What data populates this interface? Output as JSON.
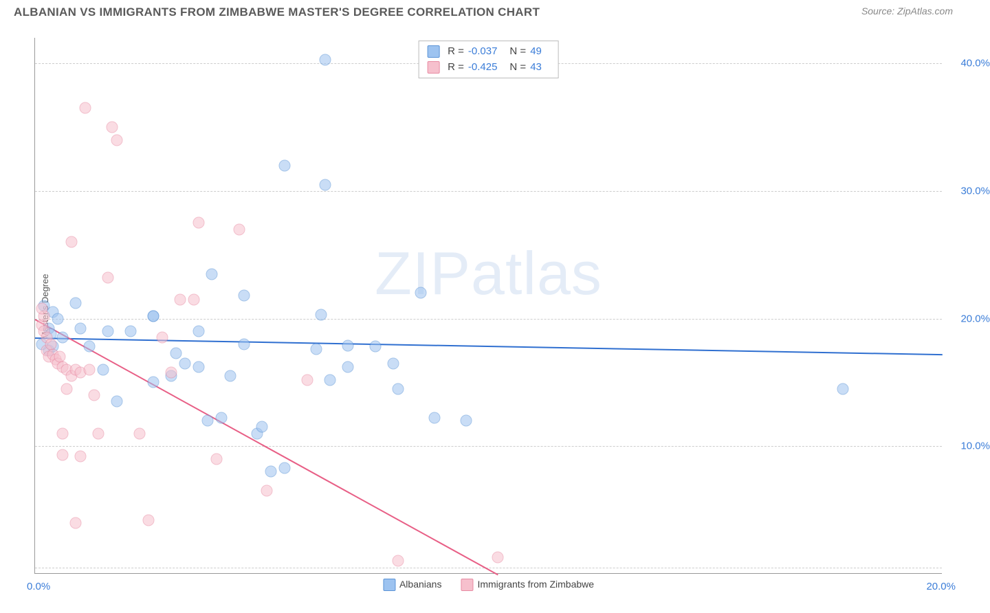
{
  "header": {
    "title": "ALBANIAN VS IMMIGRANTS FROM ZIMBABWE MASTER'S DEGREE CORRELATION CHART",
    "source_prefix": "Source: ",
    "source_name": "ZipAtlas.com"
  },
  "watermark": "ZIPatlas",
  "chart": {
    "type": "scatter",
    "ylabel": "Master's Degree",
    "xlim": [
      0,
      20
    ],
    "ylim": [
      0,
      42
    ],
    "xticks": [
      {
        "v": 0,
        "label": "0.0%"
      },
      {
        "v": 20,
        "label": "20.0%"
      }
    ],
    "yticks": [
      {
        "v": 10,
        "label": "10.0%"
      },
      {
        "v": 20,
        "label": "20.0%"
      },
      {
        "v": 30,
        "label": "30.0%"
      },
      {
        "v": 40,
        "label": "40.0%"
      }
    ],
    "ygrid": [
      0.5,
      10,
      20,
      30,
      40
    ],
    "background_color": "#ffffff",
    "grid_color": "#cccccc",
    "axis_color": "#999999",
    "tick_color": "#3b7dd8",
    "point_radius": 8.5,
    "point_opacity": 0.55,
    "series": [
      {
        "id": "albanians",
        "label": "Albanians",
        "fill_color": "#9dc3f0",
        "stroke_color": "#5a93d6",
        "trend_color": "#2f6fd0",
        "trend_width": 2.2,
        "trend": {
          "x1": 0,
          "y1": 18.5,
          "x2": 20,
          "y2": 17.2
        },
        "R_label": "R =",
        "R_value": "-0.037",
        "N_label": "N =",
        "N_value": "49",
        "points": [
          [
            0.2,
            21
          ],
          [
            0.3,
            19.2
          ],
          [
            0.3,
            17.5
          ],
          [
            0.35,
            18.8
          ],
          [
            0.4,
            20.5
          ],
          [
            0.4,
            17.8
          ],
          [
            6.4,
            40.3
          ],
          [
            5.5,
            32.0
          ],
          [
            6.4,
            30.5
          ],
          [
            3.9,
            23.5
          ],
          [
            4.6,
            21.8
          ],
          [
            1.6,
            19.0
          ],
          [
            2.1,
            19.0
          ],
          [
            2.6,
            20.2
          ],
          [
            2.6,
            20.2
          ],
          [
            1.5,
            16.0
          ],
          [
            1.8,
            13.5
          ],
          [
            1.0,
            19.2
          ],
          [
            1.2,
            17.8
          ],
          [
            0.9,
            21.2
          ],
          [
            3.1,
            17.3
          ],
          [
            3.6,
            16.2
          ],
          [
            3.3,
            16.5
          ],
          [
            3.8,
            12.0
          ],
          [
            4.1,
            12.2
          ],
          [
            3.0,
            15.5
          ],
          [
            2.6,
            15.0
          ],
          [
            3.6,
            19.0
          ],
          [
            4.6,
            18.0
          ],
          [
            5.2,
            8.0
          ],
          [
            5.5,
            8.3
          ],
          [
            4.3,
            15.5
          ],
          [
            6.2,
            17.6
          ],
          [
            6.9,
            17.9
          ],
          [
            6.5,
            15.2
          ],
          [
            6.9,
            16.2
          ],
          [
            6.3,
            20.3
          ],
          [
            7.5,
            17.8
          ],
          [
            7.9,
            16.5
          ],
          [
            8.5,
            22.0
          ],
          [
            8.8,
            12.2
          ],
          [
            8.0,
            14.5
          ],
          [
            9.5,
            12.0
          ],
          [
            4.9,
            11.0
          ],
          [
            5.0,
            11.5
          ],
          [
            17.8,
            14.5
          ],
          [
            0.5,
            20.0
          ],
          [
            0.6,
            18.5
          ],
          [
            0.15,
            18.0
          ]
        ]
      },
      {
        "id": "zimbabwe",
        "label": "Immigrants from Zimbabwe",
        "fill_color": "#f6c0cd",
        "stroke_color": "#e88aa2",
        "trend_color": "#e85f86",
        "trend_width": 2.2,
        "trend": {
          "x1": 0,
          "y1": 20.0,
          "x2": 10.2,
          "y2": 0
        },
        "R_label": "R =",
        "R_value": "-0.425",
        "N_label": "N =",
        "N_value": "43",
        "points": [
          [
            1.1,
            36.5
          ],
          [
            1.7,
            35.0
          ],
          [
            1.8,
            34.0
          ],
          [
            3.6,
            27.5
          ],
          [
            4.5,
            27.0
          ],
          [
            0.8,
            26.0
          ],
          [
            1.6,
            23.2
          ],
          [
            3.2,
            21.5
          ],
          [
            3.5,
            21.5
          ],
          [
            0.15,
            19.5
          ],
          [
            0.2,
            19.0
          ],
          [
            0.25,
            18.5
          ],
          [
            0.25,
            17.5
          ],
          [
            0.3,
            17.0
          ],
          [
            0.35,
            18.0
          ],
          [
            0.4,
            17.2
          ],
          [
            0.45,
            16.8
          ],
          [
            0.5,
            16.5
          ],
          [
            0.55,
            17.0
          ],
          [
            0.6,
            16.2
          ],
          [
            0.7,
            16.0
          ],
          [
            0.8,
            15.5
          ],
          [
            0.9,
            16.0
          ],
          [
            1.0,
            15.8
          ],
          [
            2.8,
            18.5
          ],
          [
            3.0,
            15.8
          ],
          [
            0.7,
            14.5
          ],
          [
            1.2,
            16.0
          ],
          [
            1.3,
            14.0
          ],
          [
            0.6,
            11.0
          ],
          [
            1.4,
            11.0
          ],
          [
            2.3,
            11.0
          ],
          [
            0.6,
            9.3
          ],
          [
            1.0,
            9.2
          ],
          [
            5.1,
            6.5
          ],
          [
            6.0,
            15.2
          ],
          [
            0.9,
            4.0
          ],
          [
            2.5,
            4.2
          ],
          [
            4.0,
            9.0
          ],
          [
            8.0,
            1.0
          ],
          [
            10.2,
            1.3
          ],
          [
            0.2,
            20.2
          ],
          [
            0.15,
            20.8
          ]
        ]
      }
    ]
  }
}
